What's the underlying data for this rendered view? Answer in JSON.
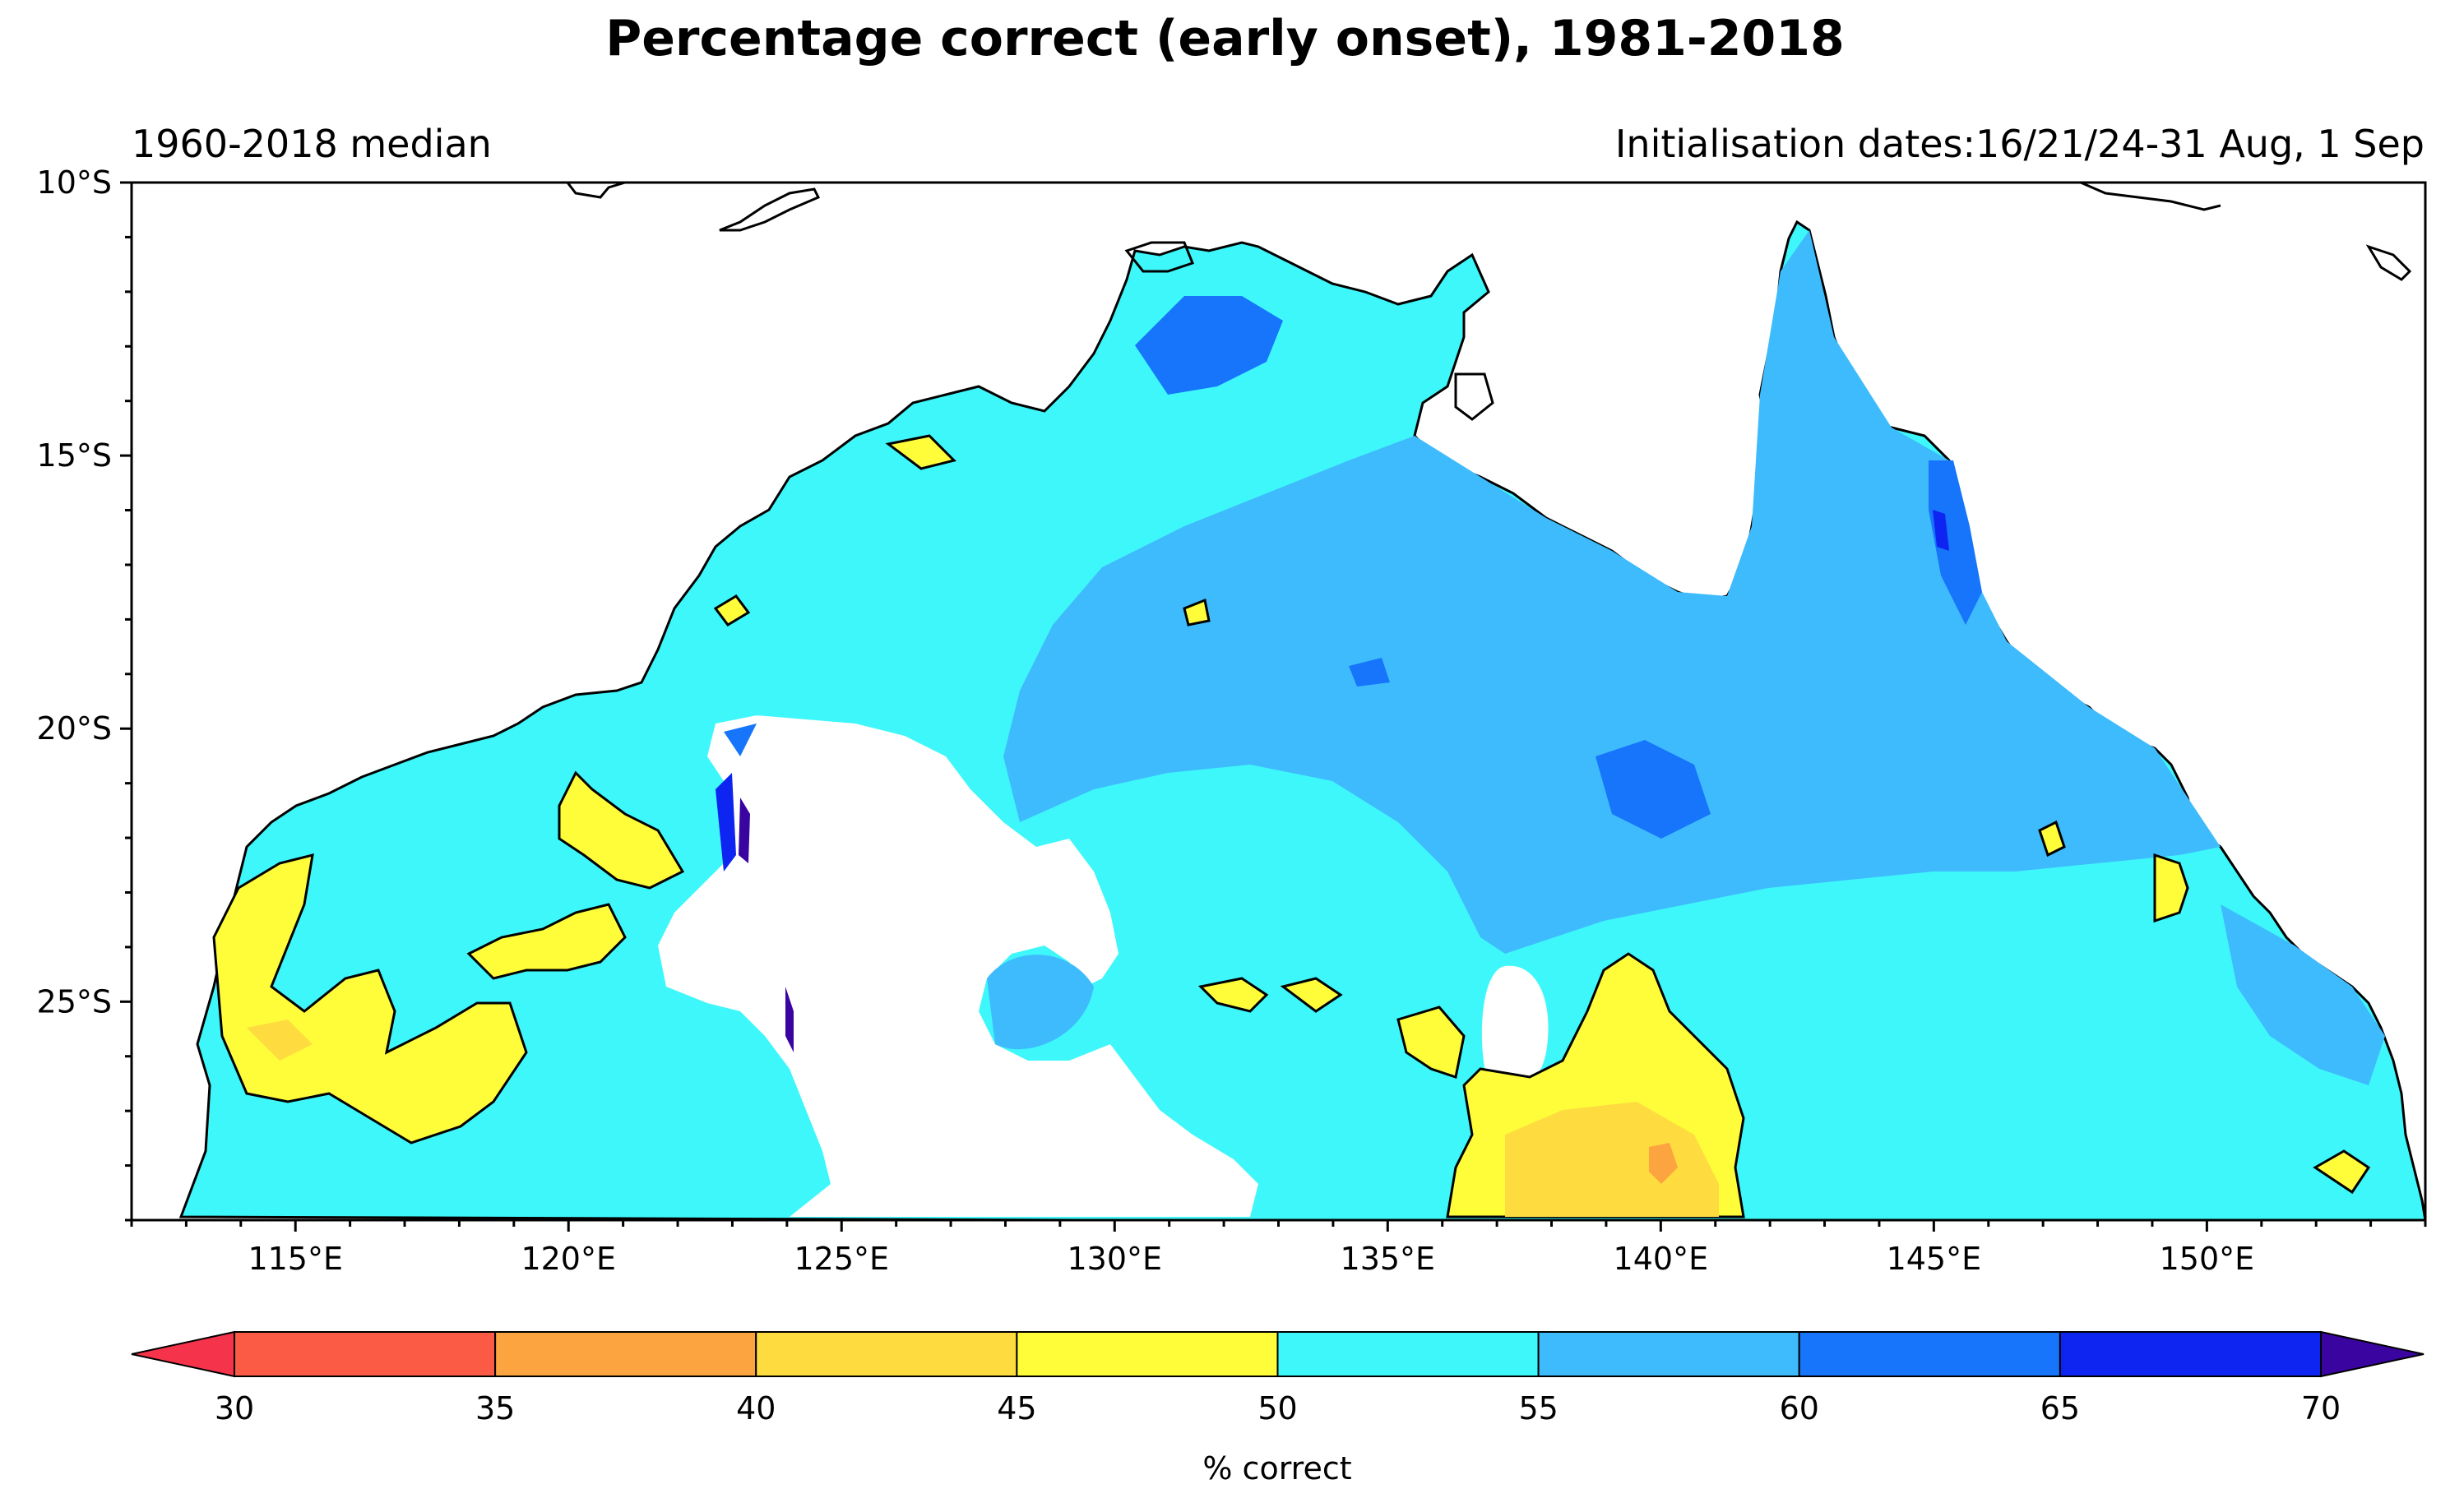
{
  "title": "Percentage correct (early onset), 1981-2018",
  "subtitle_left": "1960-2018 median",
  "subtitle_right": "Initialisation dates:16/21/24-31 Aug, 1 Sep",
  "map": {
    "lon_range": [
      112,
      154
    ],
    "lat_range": [
      -29,
      -10
    ],
    "lon_ticks": [
      "115°E",
      "120°E",
      "125°E",
      "130°E",
      "135°E",
      "140°E",
      "145°E",
      "150°E"
    ],
    "lat_ticks": [
      "10°S",
      "15°S",
      "20°S",
      "25°S"
    ]
  },
  "colorbar": {
    "label": "% correct",
    "ticks": [
      "30",
      "35",
      "40",
      "45",
      "50",
      "55",
      "60",
      "65",
      "70"
    ],
    "colors": {
      "under": "#f5334b",
      "30-35": "#fb5a44",
      "35-40": "#fca43f",
      "40-45": "#fedc3f",
      "45-50": "#fffd3a",
      "50-55": "#3ef7fa",
      "55-60": "#3ebbfc",
      "60-65": "#1775fb",
      "65-70": "#0e24f0",
      "over": "#3a04a0"
    }
  }
}
